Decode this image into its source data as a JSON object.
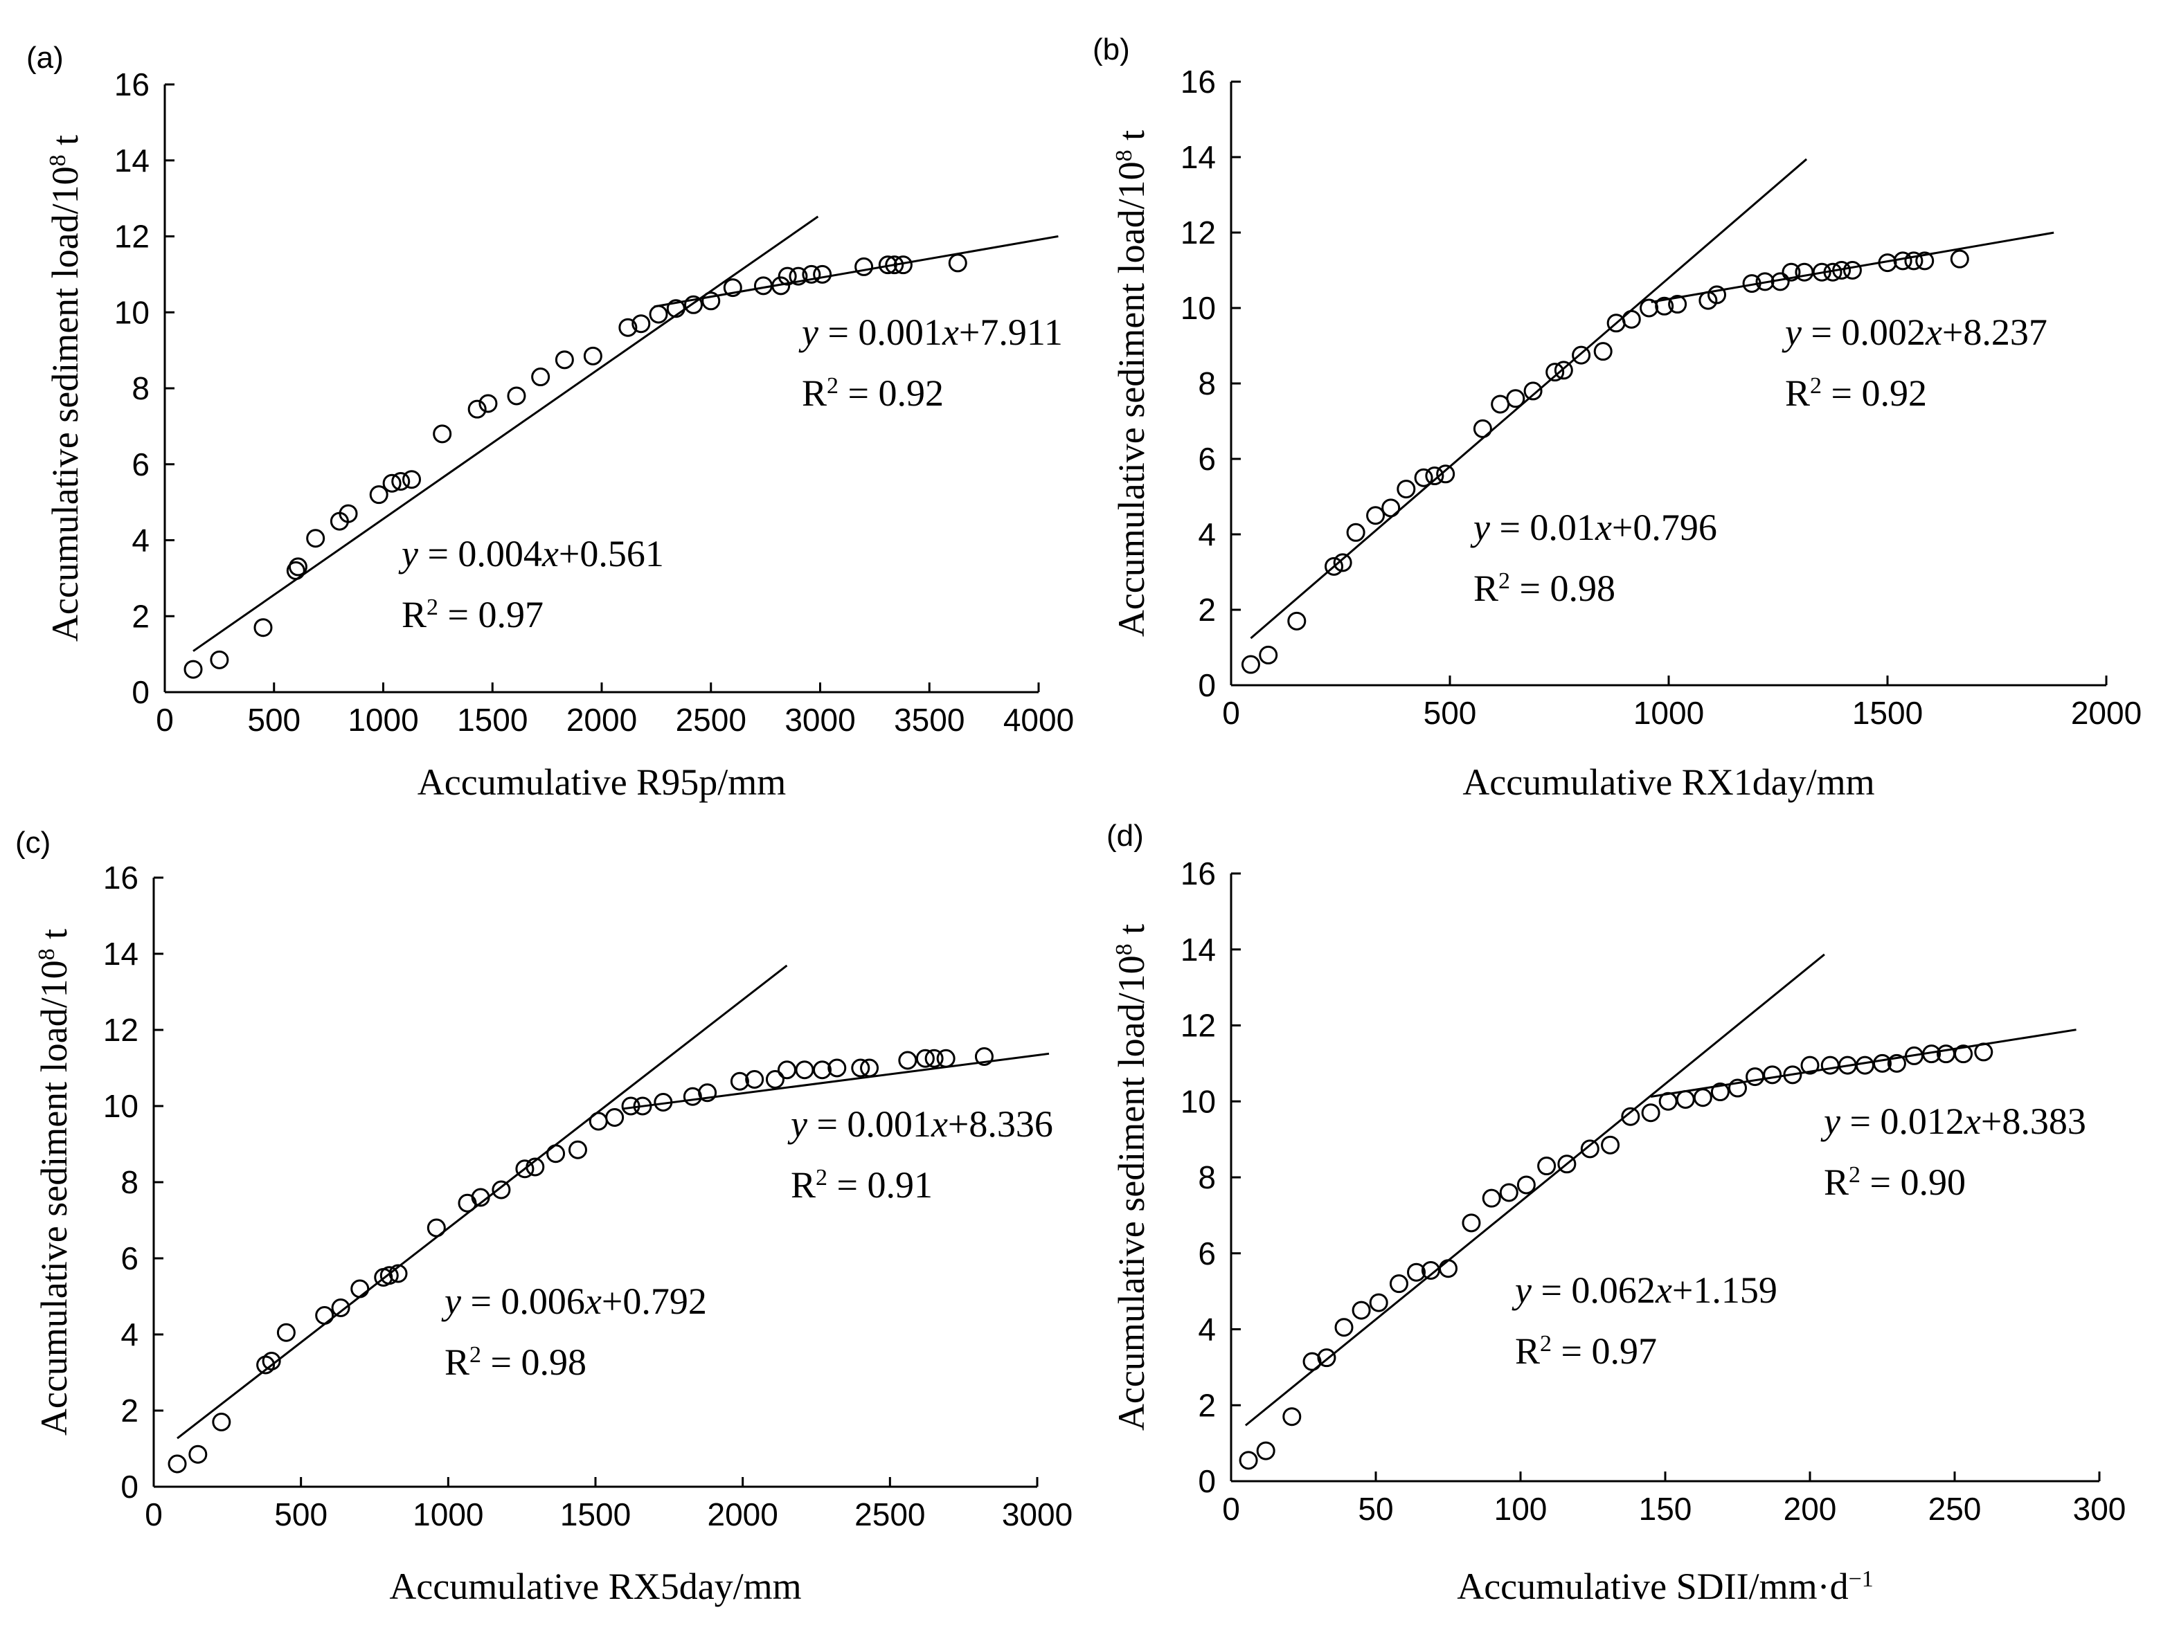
{
  "chart_data": [
    {
      "type": "scatter",
      "panel_label": "(a)",
      "xlabel": "Accumulative R95p/mm",
      "ylabel": "Accumulative sediment load/10",
      "ylabel_sup": "8",
      "ylabel_unit": " t",
      "xlim": [
        0,
        4000
      ],
      "ylim": [
        0,
        16
      ],
      "xticks": [
        "0",
        "500",
        "1000",
        "1500",
        "2000",
        "2500",
        "3000",
        "3500",
        "4000"
      ],
      "yticks": [
        "0",
        "2",
        "4",
        "6",
        "8",
        "10",
        "12",
        "14",
        "16"
      ],
      "points": [
        [
          130,
          0.6
        ],
        [
          250,
          0.85
        ],
        [
          450,
          1.7
        ],
        [
          600,
          3.2
        ],
        [
          610,
          3.3
        ],
        [
          690,
          4.05
        ],
        [
          800,
          4.5
        ],
        [
          840,
          4.7
        ],
        [
          980,
          5.2
        ],
        [
          1040,
          5.5
        ],
        [
          1080,
          5.55
        ],
        [
          1130,
          5.6
        ],
        [
          1270,
          6.8
        ],
        [
          1430,
          7.45
        ],
        [
          1480,
          7.6
        ],
        [
          1610,
          7.8
        ],
        [
          1720,
          8.3
        ],
        [
          1830,
          8.75
        ],
        [
          1960,
          8.85
        ],
        [
          2120,
          9.6
        ],
        [
          2180,
          9.7
        ],
        [
          2260,
          9.95
        ],
        [
          2340,
          10.1
        ],
        [
          2420,
          10.2
        ],
        [
          2500,
          10.3
        ],
        [
          2600,
          10.65
        ],
        [
          2740,
          10.7
        ],
        [
          2820,
          10.7
        ],
        [
          2850,
          10.95
        ],
        [
          2900,
          10.95
        ],
        [
          2960,
          11.0
        ],
        [
          3010,
          11.0
        ],
        [
          3200,
          11.2
        ],
        [
          3310,
          11.25
        ],
        [
          3340,
          11.25
        ],
        [
          3380,
          11.25
        ],
        [
          3630,
          11.3
        ]
      ],
      "fits": [
        {
          "x": [
            130,
            2990
          ],
          "slope": 0.004,
          "intercept": 0.561,
          "equation": [
            "y",
            " = 0.004",
            "x",
            "+0.561"
          ],
          "r2_label": [
            "R",
            "2",
            " = 0.97"
          ]
        },
        {
          "x": [
            2240,
            4090
          ],
          "slope": 0.001,
          "intercept": 7.911,
          "equation": [
            "y",
            " = 0.001",
            "x",
            "+7.911"
          ],
          "r2_label": [
            "R",
            "2",
            " = 0.92"
          ]
        }
      ]
    },
    {
      "type": "scatter",
      "panel_label": "(b)",
      "xlabel": "Accumulative RX1day/mm",
      "ylabel": "Accumulative sediment load/10",
      "ylabel_sup": "8",
      "ylabel_unit": " t",
      "xlim": [
        0,
        2000
      ],
      "ylim": [
        0,
        16
      ],
      "xticks": [
        "0",
        "500",
        "1000",
        "1500",
        "2000"
      ],
      "yticks": [
        "0",
        "2",
        "4",
        "6",
        "8",
        "10",
        "12",
        "14",
        "16"
      ],
      "points": [
        [
          45,
          0.55
        ],
        [
          85,
          0.8
        ],
        [
          150,
          1.7
        ],
        [
          235,
          3.15
        ],
        [
          255,
          3.25
        ],
        [
          285,
          4.05
        ],
        [
          330,
          4.5
        ],
        [
          365,
          4.7
        ],
        [
          400,
          5.2
        ],
        [
          440,
          5.5
        ],
        [
          465,
          5.55
        ],
        [
          490,
          5.6
        ],
        [
          575,
          6.8
        ],
        [
          615,
          7.45
        ],
        [
          650,
          7.6
        ],
        [
          690,
          7.8
        ],
        [
          740,
          8.3
        ],
        [
          760,
          8.35
        ],
        [
          800,
          8.75
        ],
        [
          850,
          8.85
        ],
        [
          880,
          9.6
        ],
        [
          915,
          9.7
        ],
        [
          955,
          10.0
        ],
        [
          990,
          10.05
        ],
        [
          1020,
          10.1
        ],
        [
          1090,
          10.2
        ],
        [
          1110,
          10.35
        ],
        [
          1190,
          10.65
        ],
        [
          1220,
          10.7
        ],
        [
          1255,
          10.7
        ],
        [
          1280,
          10.95
        ],
        [
          1310,
          10.95
        ],
        [
          1350,
          10.95
        ],
        [
          1375,
          10.95
        ],
        [
          1395,
          11.0
        ],
        [
          1420,
          11.0
        ],
        [
          1500,
          11.2
        ],
        [
          1535,
          11.25
        ],
        [
          1560,
          11.25
        ],
        [
          1585,
          11.25
        ],
        [
          1665,
          11.3
        ]
      ],
      "fits": [
        {
          "x": [
            45,
            1315
          ],
          "slope": 0.01,
          "intercept": 0.796,
          "equation": [
            "y",
            " = 0.01",
            "x",
            "+0.796"
          ],
          "r2_label": [
            "R",
            "2",
            " = 0.98"
          ]
        },
        {
          "x": [
            960,
            1880
          ],
          "slope": 0.002,
          "intercept": 8.237,
          "equation": [
            "y",
            " = 0.002",
            "x",
            "+8.237"
          ],
          "r2_label": [
            "R",
            "2",
            " = 0.92"
          ]
        }
      ]
    },
    {
      "type": "scatter",
      "panel_label": "(c)",
      "xlabel": "Accumulative RX5day/mm",
      "ylabel": "Accumulative sediment load/10",
      "ylabel_sup": "8",
      "ylabel_unit": " t",
      "xlim": [
        0,
        3000
      ],
      "ylim": [
        0,
        16
      ],
      "xticks": [
        "0",
        "500",
        "1000",
        "1500",
        "2000",
        "2500",
        "3000"
      ],
      "yticks": [
        "0",
        "2",
        "4",
        "6",
        "8",
        "10",
        "12",
        "14",
        "16"
      ],
      "points": [
        [
          80,
          0.6
        ],
        [
          150,
          0.85
        ],
        [
          230,
          1.7
        ],
        [
          380,
          3.2
        ],
        [
          400,
          3.3
        ],
        [
          450,
          4.05
        ],
        [
          580,
          4.5
        ],
        [
          635,
          4.7
        ],
        [
          700,
          5.2
        ],
        [
          780,
          5.5
        ],
        [
          800,
          5.55
        ],
        [
          830,
          5.6
        ],
        [
          960,
          6.8
        ],
        [
          1065,
          7.45
        ],
        [
          1110,
          7.6
        ],
        [
          1180,
          7.8
        ],
        [
          1260,
          8.35
        ],
        [
          1295,
          8.4
        ],
        [
          1365,
          8.75
        ],
        [
          1440,
          8.85
        ],
        [
          1510,
          9.6
        ],
        [
          1565,
          9.7
        ],
        [
          1620,
          10.0
        ],
        [
          1660,
          10.0
        ],
        [
          1730,
          10.1
        ],
        [
          1830,
          10.25
        ],
        [
          1880,
          10.35
        ],
        [
          1990,
          10.65
        ],
        [
          2040,
          10.7
        ],
        [
          2110,
          10.7
        ],
        [
          2150,
          10.95
        ],
        [
          2210,
          10.95
        ],
        [
          2270,
          10.95
        ],
        [
          2320,
          11.0
        ],
        [
          2400,
          11.0
        ],
        [
          2430,
          11.0
        ],
        [
          2560,
          11.2
        ],
        [
          2620,
          11.25
        ],
        [
          2650,
          11.25
        ],
        [
          2690,
          11.25
        ],
        [
          2820,
          11.3
        ]
      ],
      "fits": [
        {
          "x": [
            80,
            2150
          ],
          "slope": 0.006,
          "intercept": 0.792,
          "equation": [
            "y",
            " = 0.006",
            "x",
            "+0.792"
          ],
          "r2_label": [
            "R",
            "2",
            " = 0.98"
          ]
        },
        {
          "x": [
            1590,
            3040
          ],
          "slope": 0.001,
          "intercept": 8.336,
          "equation": [
            "y",
            " = 0.001",
            "x",
            "+8.336"
          ],
          "r2_label": [
            "R",
            "2",
            " = 0.91"
          ]
        }
      ]
    },
    {
      "type": "scatter",
      "panel_label": "(d)",
      "xlabel": "Accumulative SDII/mm·d",
      "xlabel_sup": "−1",
      "ylabel": "Accumulative sediment load/10",
      "ylabel_sup": "8",
      "ylabel_unit": " t",
      "xlim": [
        0,
        300
      ],
      "ylim": [
        0,
        16
      ],
      "xticks": [
        "0",
        "50",
        "100",
        "150",
        "200",
        "250",
        "300"
      ],
      "yticks": [
        "0",
        "2",
        "4",
        "6",
        "8",
        "10",
        "12",
        "14",
        "16"
      ],
      "points": [
        [
          6,
          0.55
        ],
        [
          12,
          0.8
        ],
        [
          21,
          1.7
        ],
        [
          28,
          3.15
        ],
        [
          33,
          3.25
        ],
        [
          39,
          4.05
        ],
        [
          45,
          4.5
        ],
        [
          51,
          4.7
        ],
        [
          58,
          5.2
        ],
        [
          64,
          5.5
        ],
        [
          69,
          5.55
        ],
        [
          75,
          5.6
        ],
        [
          83,
          6.8
        ],
        [
          90,
          7.45
        ],
        [
          96,
          7.6
        ],
        [
          102,
          7.8
        ],
        [
          109,
          8.3
        ],
        [
          116,
          8.35
        ],
        [
          124,
          8.75
        ],
        [
          131,
          8.85
        ],
        [
          138,
          9.6
        ],
        [
          145,
          9.7
        ],
        [
          151,
          10.0
        ],
        [
          157,
          10.05
        ],
        [
          163,
          10.1
        ],
        [
          169,
          10.25
        ],
        [
          175,
          10.35
        ],
        [
          181,
          10.65
        ],
        [
          187,
          10.7
        ],
        [
          194,
          10.7
        ],
        [
          200,
          10.95
        ],
        [
          207,
          10.95
        ],
        [
          213,
          10.95
        ],
        [
          219,
          10.95
        ],
        [
          225,
          11.0
        ],
        [
          230,
          11.0
        ],
        [
          236,
          11.2
        ],
        [
          242,
          11.25
        ],
        [
          247,
          11.25
        ],
        [
          253,
          11.25
        ],
        [
          260,
          11.3
        ]
      ],
      "fits": [
        {
          "x": [
            5,
            205
          ],
          "slope": 0.062,
          "intercept": 1.159,
          "equation": [
            "y",
            " = 0.062",
            "x",
            "+1.159"
          ],
          "r2_label": [
            "R",
            "2",
            " = 0.97"
          ]
        },
        {
          "x": [
            145,
            292
          ],
          "slope": 0.012,
          "intercept": 8.383,
          "equation": [
            "y",
            " = 0.012",
            "x",
            "+8.383"
          ],
          "r2_label": [
            "R",
            "2",
            " = 0.90"
          ]
        }
      ]
    }
  ]
}
